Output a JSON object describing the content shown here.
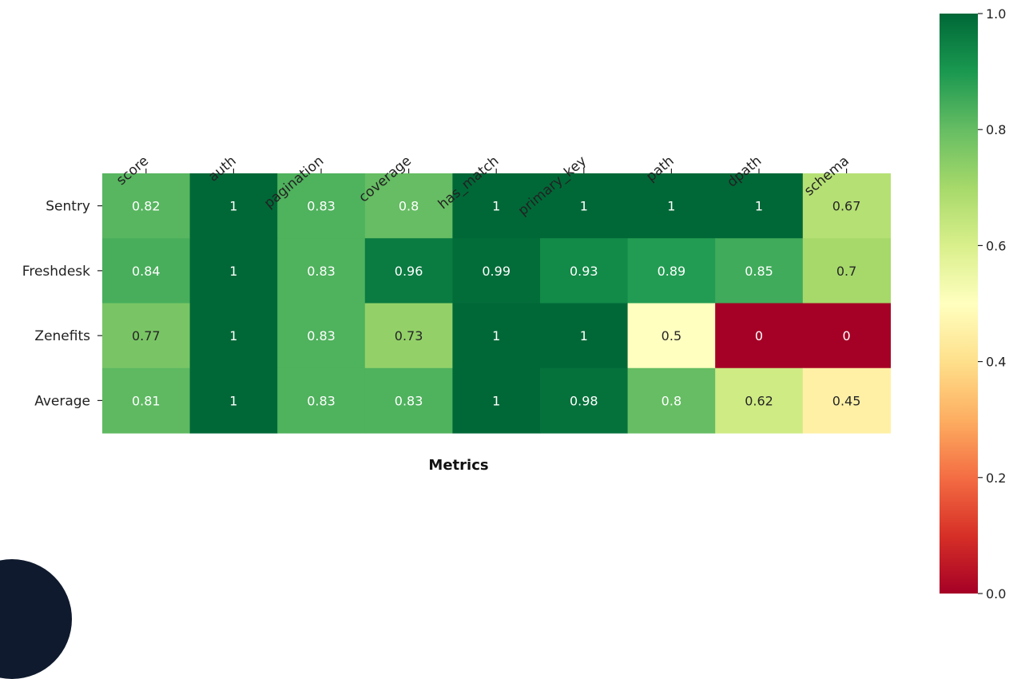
{
  "chart_data": {
    "type": "heatmap",
    "xlabel": "Metrics",
    "ylabel": "",
    "columns": [
      "score",
      "auth",
      "pagination",
      "coverage",
      "has_match",
      "primary_key",
      "path",
      "dpath",
      "schema"
    ],
    "rows": [
      "Sentry",
      "Freshdesk",
      "Zenefits",
      "Average"
    ],
    "values": [
      [
        0.82,
        1,
        0.83,
        0.8,
        1,
        1,
        1,
        1,
        0.67
      ],
      [
        0.84,
        1,
        0.83,
        0.96,
        0.99,
        0.93,
        0.89,
        0.85,
        0.7
      ],
      [
        0.77,
        1,
        0.83,
        0.73,
        1,
        1,
        0.5,
        0,
        0
      ],
      [
        0.81,
        1,
        0.83,
        0.83,
        1,
        0.98,
        0.8,
        0.62,
        0.45
      ]
    ],
    "labels": [
      [
        "0.82",
        "1",
        "0.83",
        "0.8",
        "1",
        "1",
        "1",
        "1",
        "0.67"
      ],
      [
        "0.84",
        "1",
        "0.83",
        "0.96",
        "0.99",
        "0.93",
        "0.89",
        "0.85",
        "0.7"
      ],
      [
        "0.77",
        "1",
        "0.83",
        "0.73",
        "1",
        "1",
        "0.5",
        "0",
        "0"
      ],
      [
        "0.81",
        "1",
        "0.83",
        "0.83",
        "1",
        "0.98",
        "0.8",
        "0.62",
        "0.45"
      ]
    ],
    "colorbar": {
      "colormap": "RdYlGn",
      "range": [
        0.0,
        1.0
      ],
      "ticks": [
        0.0,
        0.2,
        0.4,
        0.6,
        0.8,
        1.0
      ],
      "tick_labels": [
        "0.0",
        "0.2",
        "0.4",
        "0.6",
        "0.8",
        "1.0"
      ]
    },
    "x_tick_position": "top",
    "grid": false
  }
}
